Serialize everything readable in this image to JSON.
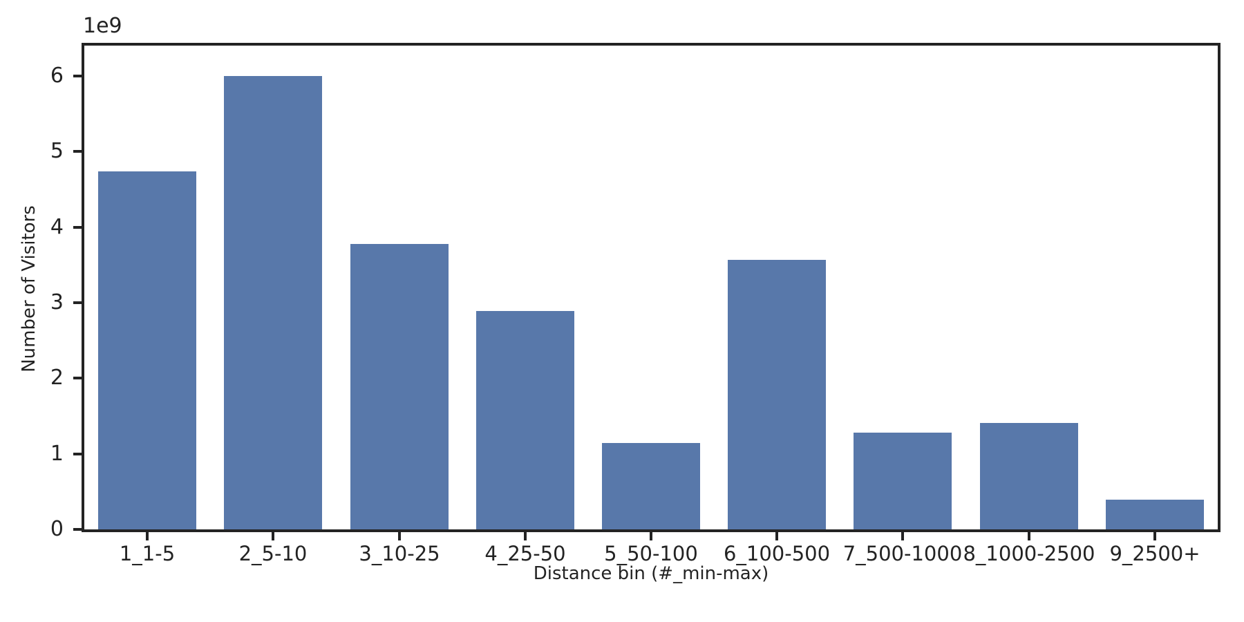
{
  "figure": {
    "background": "#ffffff"
  },
  "chart_data": {
    "type": "bar",
    "title": "",
    "xlabel": "Distance bin (#_min-max)",
    "ylabel": "Number of Visitors",
    "offset_text": "1e9",
    "categories": [
      "1_1-5",
      "2_5-10",
      "3_10-25",
      "4_25-50",
      "5_50-100",
      "6_100-500",
      "7_500-1000",
      "8_1000-2500",
      "9_2500+"
    ],
    "series": [
      {
        "name": "Number of Visitors",
        "values_in_billions": [
          4.74,
          6.0,
          3.78,
          2.89,
          1.14,
          3.57,
          1.28,
          1.41,
          0.39
        ]
      }
    ],
    "y_ticks": [
      0,
      1,
      2,
      3,
      4,
      5,
      6
    ],
    "y_unit_multiplier": 1000000000,
    "ylim_in_billions": [
      0,
      6.4
    ],
    "grid": false,
    "legend_position": "none",
    "bar_color": "#5878aa",
    "axis_color": "#232323",
    "bar_width_fraction": 0.78
  }
}
